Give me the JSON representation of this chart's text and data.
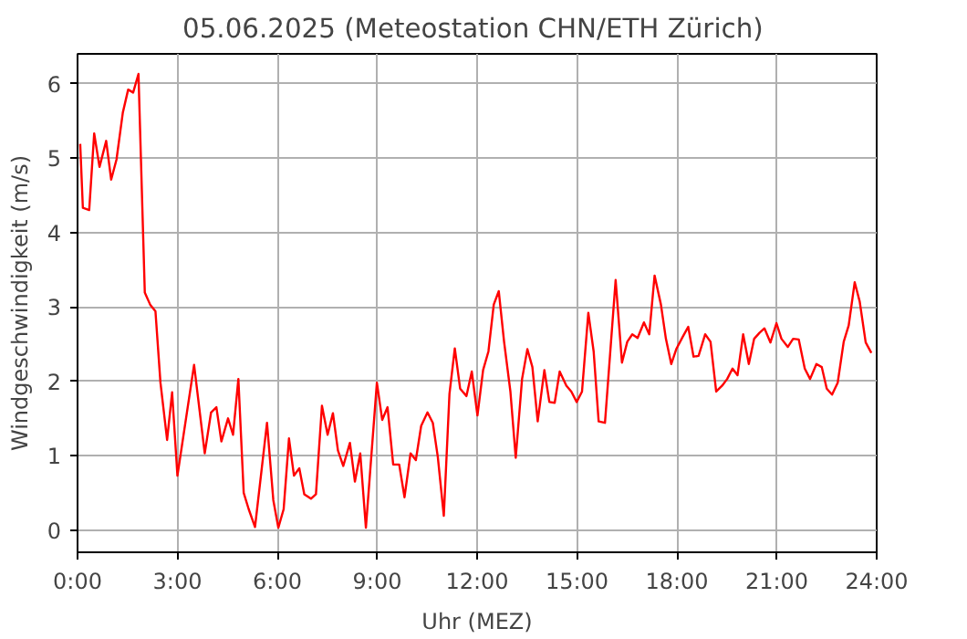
{
  "chart_data": {
    "type": "line",
    "title": "05.06.2025  (Meteostation CHN/ETH Zürich)",
    "xlabel": "Uhr (MEZ)",
    "ylabel": "Windgeschwindigkeit (m/s)",
    "xlim": [
      0,
      24
    ],
    "ylim": [
      -0.3,
      6.4
    ],
    "xticks": [
      {
        "value": 0,
        "label": "0:00"
      },
      {
        "value": 3,
        "label": "3:00"
      },
      {
        "value": 6,
        "label": "6:00"
      },
      {
        "value": 9,
        "label": "9:00"
      },
      {
        "value": 12,
        "label": "12:00"
      },
      {
        "value": 15,
        "label": "15:00"
      },
      {
        "value": 18,
        "label": "18:00"
      },
      {
        "value": 21,
        "label": "21:00"
      },
      {
        "value": 24,
        "label": "24:00"
      }
    ],
    "yticks": [
      0,
      1,
      2,
      3,
      4,
      5,
      6
    ],
    "grid": true,
    "line_style": "solid",
    "marker": "none",
    "x": [
      0.08,
      0.16,
      0.35,
      0.5,
      0.66,
      0.86,
      1.01,
      1.17,
      1.36,
      1.52,
      1.67,
      1.83,
      2.02,
      2.18,
      2.34,
      2.49,
      2.69,
      2.84,
      3.0,
      3.5,
      3.82,
      4.01,
      4.17,
      4.32,
      4.52,
      4.67,
      4.83,
      4.99,
      5.14,
      5.33,
      5.69,
      5.88,
      6.03,
      6.19,
      6.35,
      6.5,
      6.66,
      6.81,
      7.01,
      7.16,
      7.34,
      7.51,
      7.67,
      7.82,
      7.98,
      8.18,
      8.33,
      8.49,
      8.66,
      8.99,
      9.15,
      9.31,
      9.48,
      9.66,
      9.82,
      10.0,
      10.16,
      10.32,
      10.51,
      10.67,
      10.82,
      11.0,
      11.17,
      11.33,
      11.49,
      11.68,
      11.84,
      12.01,
      12.18,
      12.34,
      12.5,
      12.65,
      12.81,
      13.0,
      13.16,
      13.35,
      13.51,
      13.66,
      13.82,
      14.02,
      14.17,
      14.33,
      14.48,
      14.68,
      14.83,
      14.99,
      15.15,
      15.34,
      15.5,
      15.65,
      15.84,
      16.0,
      16.16,
      16.35,
      16.51,
      16.66,
      16.82,
      17.01,
      17.17,
      17.33,
      17.52,
      17.67,
      17.83,
      17.98,
      18.18,
      18.34,
      18.5,
      18.65,
      18.85,
      19.01,
      19.18,
      19.36,
      19.51,
      19.67,
      19.82,
      19.99,
      20.16,
      20.32,
      20.48,
      20.63,
      20.81,
      20.99,
      21.14,
      21.33,
      21.49,
      21.66,
      21.84,
      22.0,
      22.19,
      22.35,
      22.5,
      22.66,
      22.83,
      23.01,
      23.16,
      23.34,
      23.49,
      23.67,
      23.84
    ],
    "series": [
      {
        "color": "#ff0000",
        "values": [
          5.19,
          4.33,
          4.3,
          5.33,
          4.88,
          5.23,
          4.71,
          4.98,
          5.61,
          5.92,
          5.88,
          6.13,
          3.19,
          3.03,
          2.94,
          1.98,
          1.21,
          1.85,
          0.73,
          2.22,
          1.03,
          1.58,
          1.65,
          1.19,
          1.5,
          1.28,
          2.03,
          0.5,
          0.28,
          0.04,
          1.44,
          0.4,
          0.03,
          0.28,
          1.23,
          0.73,
          0.83,
          0.48,
          0.42,
          0.48,
          1.67,
          1.28,
          1.57,
          1.07,
          0.86,
          1.17,
          0.65,
          1.03,
          0.03,
          1.98,
          1.48,
          1.65,
          0.88,
          0.88,
          0.44,
          1.03,
          0.94,
          1.4,
          1.58,
          1.44,
          0.98,
          0.19,
          1.83,
          2.44,
          1.9,
          1.8,
          2.13,
          1.54,
          2.15,
          2.4,
          3.03,
          3.21,
          2.53,
          1.86,
          0.97,
          2.03,
          2.43,
          2.19,
          1.46,
          2.15,
          1.72,
          1.71,
          2.13,
          1.94,
          1.86,
          1.72,
          1.86,
          2.92,
          2.4,
          1.46,
          1.44,
          2.4,
          3.36,
          2.25,
          2.53,
          2.63,
          2.58,
          2.79,
          2.63,
          3.42,
          3.03,
          2.57,
          2.23,
          2.43,
          2.6,
          2.73,
          2.33,
          2.34,
          2.63,
          2.53,
          1.86,
          1.94,
          2.03,
          2.17,
          2.08,
          2.63,
          2.23,
          2.57,
          2.65,
          2.71,
          2.52,
          2.78,
          2.57,
          2.46,
          2.57,
          2.56,
          2.17,
          2.03,
          2.23,
          2.19,
          1.9,
          1.82,
          1.98,
          2.53,
          2.75,
          3.33,
          3.07,
          2.52,
          2.38
        ]
      }
    ]
  }
}
